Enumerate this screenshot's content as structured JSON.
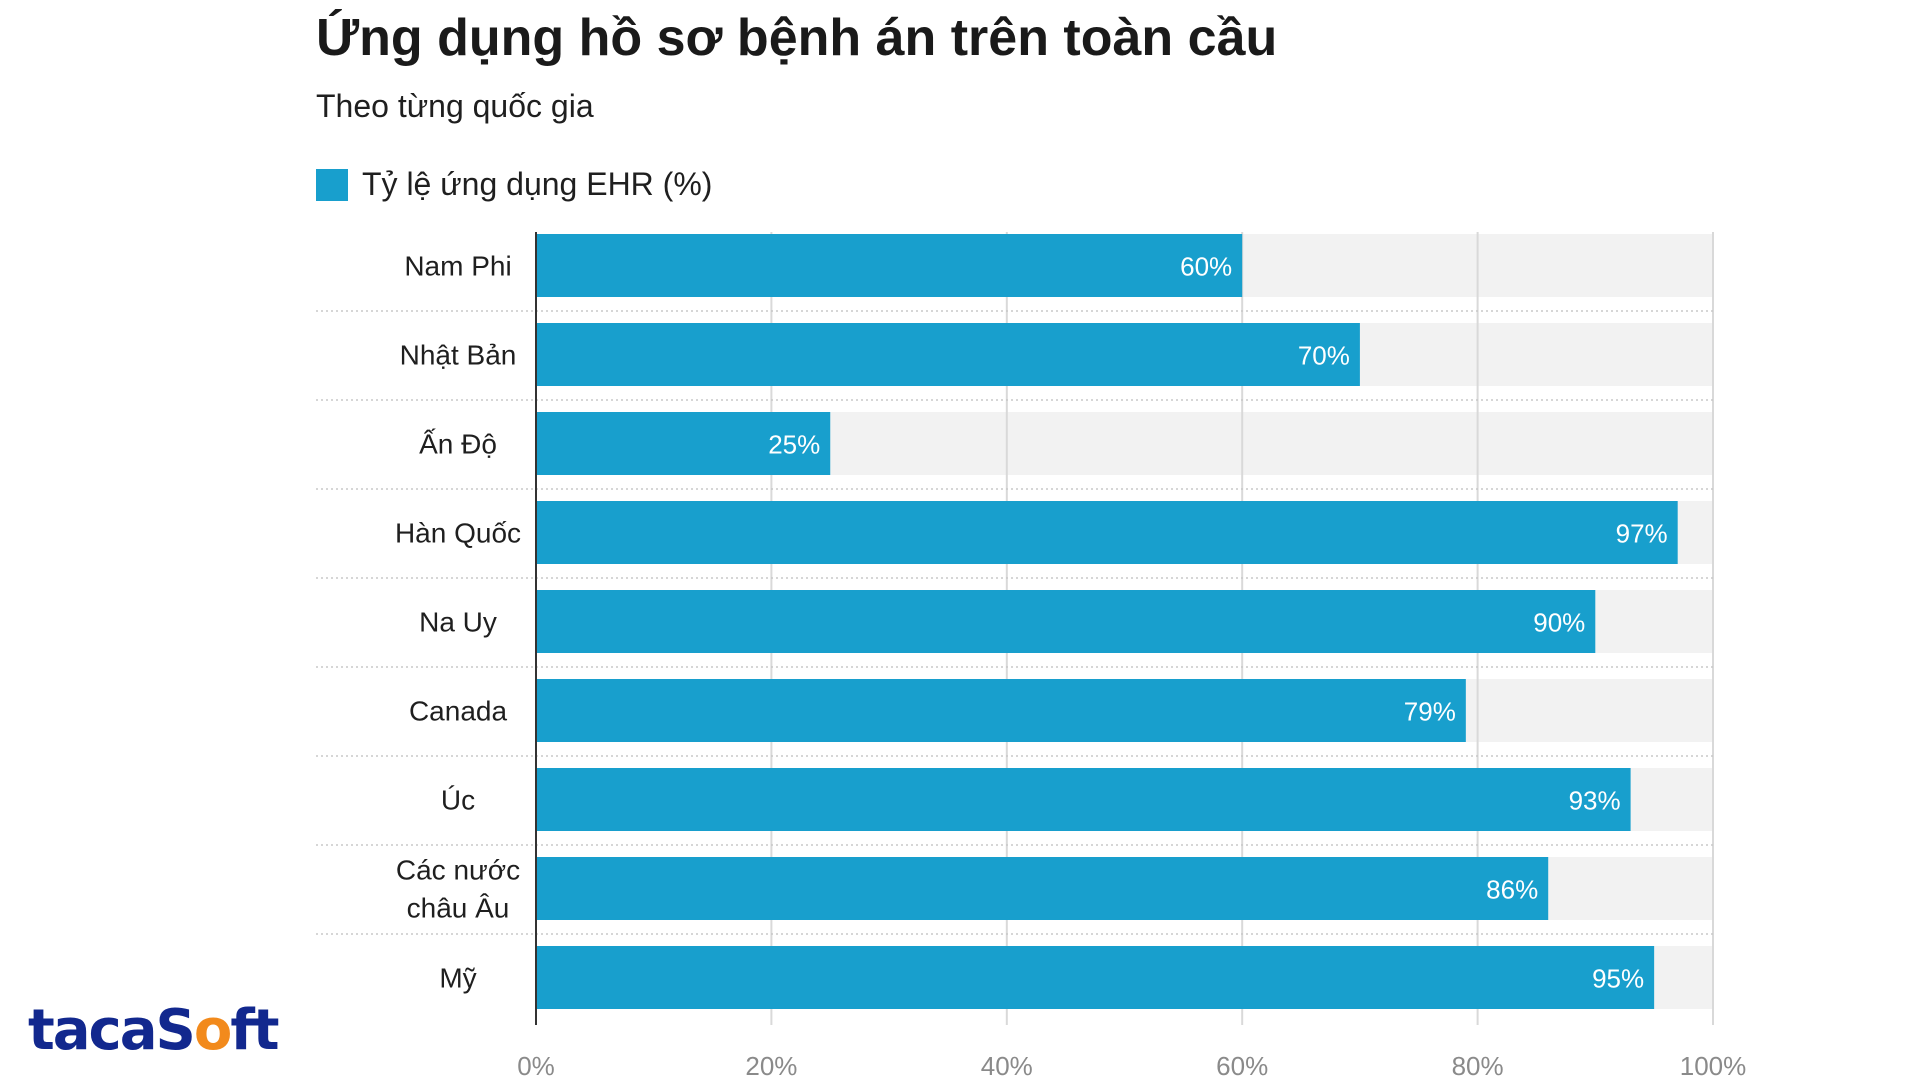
{
  "chart_data": {
    "type": "bar",
    "orientation": "horizontal",
    "title": "Ứng dụng hồ sơ bệnh án trên toàn cầu",
    "subtitle": "Theo từng quốc gia",
    "legend": [
      "Tỷ lệ ứng dụng EHR (%)"
    ],
    "legend_position": "top-left",
    "categories": [
      [
        "Nam Phi"
      ],
      [
        "Nhật Bản"
      ],
      [
        "Ấn Độ"
      ],
      [
        "Hàn Quốc"
      ],
      [
        "Na Uy"
      ],
      [
        "Canada"
      ],
      [
        "Úc"
      ],
      [
        "Các nước",
        "châu Âu"
      ],
      [
        "Mỹ"
      ]
    ],
    "series": [
      {
        "name": "Tỷ lệ ứng dụng EHR (%)",
        "values": [
          60,
          70,
          25,
          97,
          90,
          79,
          93,
          86,
          95
        ],
        "labels": [
          "60%",
          "70%",
          "25%",
          "97%",
          "90%",
          "79%",
          "93%",
          "86%",
          "95%"
        ]
      }
    ],
    "xlim": [
      0,
      100
    ],
    "xticks": [
      0,
      20,
      40,
      60,
      80,
      100
    ],
    "xtick_labels": [
      "0%",
      "20%",
      "40%",
      "60%",
      "80%",
      "100%"
    ],
    "grid": true,
    "bar_color": "#189fcd",
    "track_color": "#f2f2f2"
  },
  "logo": {
    "part1": "tacaS",
    "part2": "o",
    "part3": "ft"
  }
}
